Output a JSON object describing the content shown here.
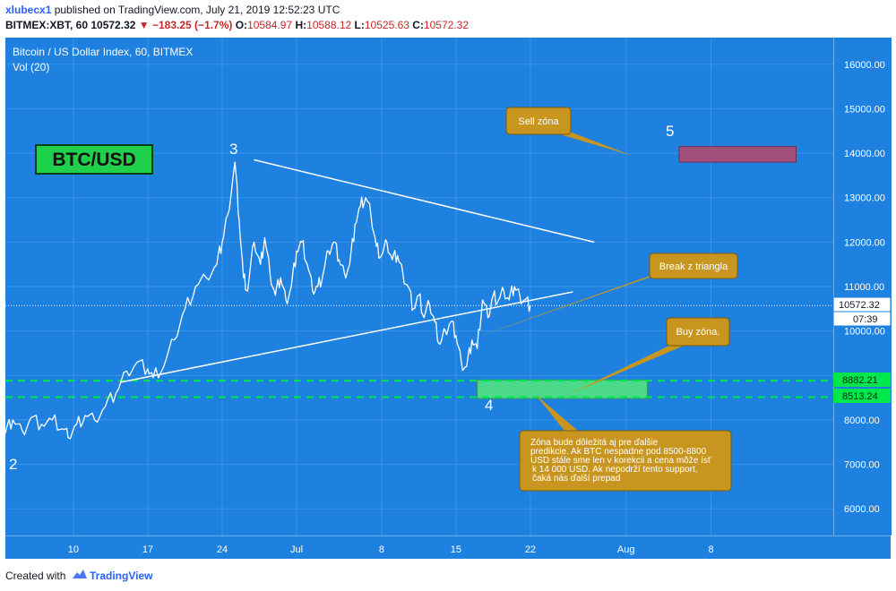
{
  "header": {
    "user": "xlubecx1",
    "published": " published on TradingView.com, July 21, 2019 12:52:23 UTC",
    "symbol": "BITMEX:XBT, 60",
    "last": "10572.32",
    "change": "▼ −183.25 (−1.7%)",
    "o_label": "O:",
    "o_value": "10584.97",
    "h_label": "H:",
    "h_value": "10588.12",
    "l_label": "L:",
    "l_value": "10525.63",
    "c_label": "C:",
    "c_value": "10572.32"
  },
  "legend": {
    "series_title": "Bitcoin / US Dollar Index, 60, BITMEX",
    "indicator": "Vol (20)"
  },
  "badge": {
    "text": "BTC/USD"
  },
  "waves": {
    "w2": "2",
    "w3": "3",
    "w4": "4",
    "w5": "5"
  },
  "callouts": {
    "sell": "Sell zóna",
    "break": "Break z triangla",
    "buy": "Buy zóna.",
    "note_lines": [
      "Zóna bude dôležitá aj pre ďalšie",
      "predikcie. Ak BTC nespadne pod 8500-8800",
      "USD stále sme len v korekcii a cena môže ísť",
      "k 14 000 USD. Ak nepodrží tento support,",
      "čaká nás ďalší prepad"
    ]
  },
  "price_labels": {
    "last": "10572.32",
    "countdown": "07:39",
    "upper_support": "8882.21",
    "lower_support": "8513.24"
  },
  "footer": {
    "created": "Created with",
    "brand": "TradingView"
  },
  "colors": {
    "background": "#1e81e0",
    "price_line": "#ffffff",
    "support_line": "#00e64d",
    "buy_zone": "#4cd98a",
    "sell_zone": "#a0507a",
    "callout": "#c8961e",
    "badge_bg": "#1fd14a"
  },
  "chart_data": {
    "type": "line",
    "ylim": [
      5400,
      16600
    ],
    "y_ticks": [
      6000,
      7000,
      8000,
      9000,
      10000,
      11000,
      12000,
      13000,
      14000,
      15000,
      16000
    ],
    "y_tick_labels": [
      "6000.00",
      "7000.00",
      "8000.00",
      "9000.00",
      "10000.00",
      "11000.00",
      "12000.00",
      "13000.00",
      "14000.00",
      "15000.00",
      "16000.00"
    ],
    "x_ticks": [
      {
        "label": "10",
        "day": 10
      },
      {
        "label": "17",
        "day": 17
      },
      {
        "label": "24",
        "day": 24
      },
      {
        "label": "Jul",
        "day": 31
      },
      {
        "label": "8",
        "day": 39
      },
      {
        "label": "15",
        "day": 46
      },
      {
        "label": "22",
        "day": 53
      },
      {
        "label": "Aug",
        "day": 62
      },
      {
        "label": "8",
        "day": 70
      }
    ],
    "x_range_days": [
      3.6,
      81.5
    ],
    "series": [
      {
        "x": [
          3.6,
          4.3,
          5.2,
          6.0,
          7.0,
          8.0,
          9.0,
          9.5,
          10.3,
          11.1,
          12.0,
          13.0,
          14.0,
          15.0,
          16.0,
          17.0,
          17.5,
          18.5,
          19.5,
          20.5,
          21.5,
          22.5,
          23.5,
          24.0,
          24.5,
          25.2,
          25.6,
          26.0,
          26.4,
          27.0,
          27.6,
          28.0,
          28.5,
          29.0,
          29.5,
          30.0,
          30.5,
          31.0,
          31.5,
          32.0,
          32.5,
          33.0,
          33.5,
          34.0,
          34.5,
          35.0,
          35.5,
          36.0,
          36.5,
          37.0,
          37.5,
          38.0,
          38.5,
          39.0,
          39.5,
          40.0,
          40.5,
          41.0,
          41.5,
          42.0,
          42.5,
          43.0,
          43.5,
          44.0,
          44.5,
          45.0,
          45.5,
          46.0,
          46.5,
          47.0,
          47.5,
          48.0,
          48.5,
          49.0,
          49.5,
          50.0,
          50.5,
          51.0,
          51.5,
          52.0,
          52.5,
          53.0
        ],
        "y": [
          7700,
          8000,
          7750,
          8050,
          7900,
          8000,
          7800,
          7600,
          7900,
          8100,
          8000,
          8300,
          8600,
          9100,
          9300,
          9150,
          8950,
          9200,
          9800,
          10500,
          11000,
          11200,
          11500,
          12000,
          12600,
          13800,
          12500,
          11200,
          10900,
          12000,
          11500,
          12100,
          11300,
          10800,
          11200,
          10700,
          11000,
          11800,
          12000,
          11500,
          10900,
          11000,
          11300,
          11800,
          12000,
          11600,
          11300,
          11500,
          12400,
          12800,
          13000,
          12600,
          11900,
          11700,
          12000,
          11600,
          11700,
          11300,
          11000,
          10500,
          10800,
          10300,
          10600,
          10200,
          9700,
          10000,
          10200,
          9900,
          9300,
          9200,
          9800,
          9600,
          10700,
          10300,
          10800,
          10700,
          10900,
          10700,
          11000,
          10800,
          10700,
          10570
        ]
      }
    ],
    "trendlines": [
      {
        "x": [
          27.0,
          59.0
        ],
        "y": [
          13850,
          12000
        ]
      },
      {
        "x": [
          14.5,
          57.0
        ],
        "y": [
          8850,
          10880
        ]
      }
    ],
    "horizontal_levels": [
      8882.21,
      8513.24,
      10572.32
    ],
    "zones": [
      {
        "x": [
          48.0,
          64.0
        ],
        "y": [
          8480,
          8900
        ]
      },
      {
        "x": [
          67.0,
          78.0
        ],
        "y": [
          13800,
          14150
        ]
      }
    ]
  }
}
